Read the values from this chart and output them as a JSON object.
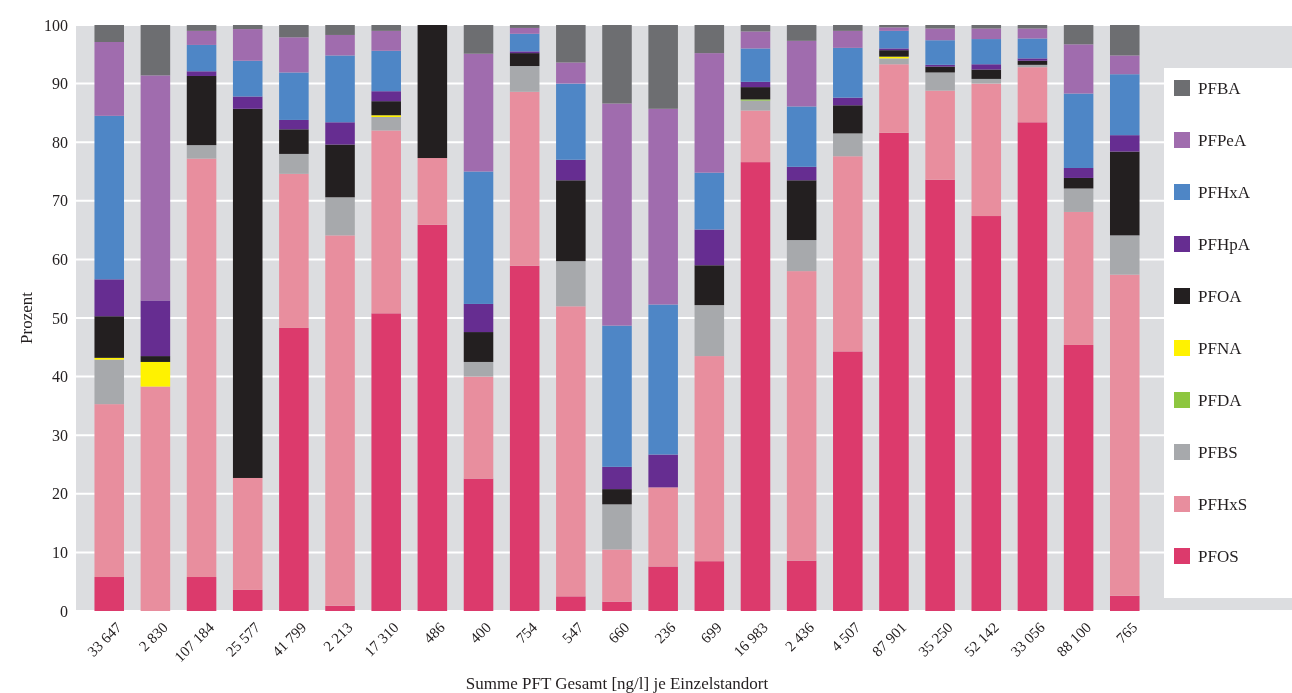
{
  "chart_data": {
    "type": "bar",
    "stacked": true,
    "xlabel": "Summe PFT Gesamt [ng/l] je Einzelstandort",
    "ylabel": "Prozent",
    "categories": [
      "33 647",
      "2 830",
      "107 184",
      "25 577",
      "41 799",
      "2 213",
      "17 310",
      "486",
      "400",
      "754",
      "547",
      "660",
      "236",
      "699",
      "16 983",
      "2 436",
      "4 507",
      "87 901",
      "35 250",
      "52 142",
      "33 056",
      "88 100",
      "765"
    ],
    "ylim": [
      0,
      100
    ],
    "yticks": [
      0,
      10,
      20,
      30,
      40,
      50,
      60,
      70,
      80,
      90,
      100
    ],
    "grid": "y",
    "legend": "right",
    "series": [
      {
        "name": "PFOS",
        "color": "#dc3a6c",
        "values": [
          5.8,
          0,
          5.8,
          3.6,
          48.3,
          0.9,
          50.8,
          65.9,
          22.6,
          58.9,
          2.5,
          1.6,
          7.6,
          8.5,
          76.6,
          8.6,
          44.3,
          81.6,
          73.6,
          67.4,
          83.4,
          45.4,
          2.6
        ]
      },
      {
        "name": "PFHxS",
        "color": "#e88e9e",
        "values": [
          29.5,
          38.3,
          71.4,
          19.1,
          26.3,
          63.2,
          31.2,
          11.4,
          17.4,
          29.7,
          49.5,
          8.9,
          13.5,
          35,
          8.8,
          49.4,
          33.3,
          11.7,
          15.2,
          22.6,
          9.4,
          22.7,
          54.8
        ]
      },
      {
        "name": "PFBS",
        "color": "#a7a9ac",
        "values": [
          7.6,
          0,
          2.3,
          0,
          3.4,
          6.5,
          2.3,
          0,
          2.5,
          4.4,
          7.7,
          7.7,
          0,
          8.7,
          1.7,
          5.3,
          3.9,
          1,
          3.1,
          0.8,
          0.4,
          4,
          6.7
        ]
      },
      {
        "name": "PFDA",
        "color": "#8dc63f",
        "values": [
          0,
          0,
          0,
          0,
          0,
          0,
          0,
          0,
          0,
          0,
          0,
          0,
          0,
          0,
          0.2,
          0,
          0,
          0,
          0,
          0,
          0,
          0,
          0
        ]
      },
      {
        "name": "PFNA",
        "color": "#fff200",
        "values": [
          0.3,
          4.2,
          0,
          0,
          0,
          0,
          0.3,
          0,
          0,
          0,
          0,
          0,
          0,
          0,
          0,
          0,
          0,
          0.3,
          0,
          0,
          0,
          0,
          0
        ]
      },
      {
        "name": "PFOA",
        "color": "#231f20",
        "values": [
          7.1,
          1,
          11.8,
          63,
          4.2,
          9,
          2.4,
          22.7,
          5.1,
          2.2,
          13.8,
          2.6,
          0,
          6.8,
          2.1,
          10.2,
          4.8,
          1.1,
          1,
          1.6,
          0.7,
          1.8,
          14.3
        ]
      },
      {
        "name": "PFHpA",
        "color": "#662d91",
        "values": [
          6.3,
          9.5,
          0.8,
          2.1,
          1.6,
          3.8,
          1.7,
          0,
          4.8,
          0.3,
          3.5,
          3.8,
          5.6,
          6.1,
          0.9,
          2.3,
          1.3,
          0.3,
          0.3,
          0.9,
          0.4,
          1.7,
          2.8
        ]
      },
      {
        "name": "PFHxA",
        "color": "#4e86c6",
        "values": [
          27.9,
          0,
          4.5,
          6.1,
          8.1,
          11.4,
          6.9,
          0,
          22.6,
          3,
          13,
          24.1,
          25.6,
          9.7,
          5.7,
          10.3,
          8.5,
          3,
          4.2,
          4.3,
          3.4,
          12.7,
          10.4
        ]
      },
      {
        "name": "PFPeA",
        "color": "#a06cae",
        "values": [
          12.6,
          38.4,
          2.4,
          5.4,
          6,
          3.5,
          3.4,
          0,
          20.1,
          1,
          3.6,
          37.9,
          33.4,
          20.4,
          2.9,
          11.2,
          2.9,
          0.6,
          2,
          1.8,
          1.7,
          8.4,
          3.2
        ]
      },
      {
        "name": "PFBA",
        "color": "#6d6e71",
        "values": [
          2.9,
          8.6,
          1,
          0.7,
          2.1,
          1.7,
          1,
          0,
          4.9,
          0.5,
          6.4,
          13.4,
          14.3,
          4.8,
          1.1,
          2.7,
          1,
          0.4,
          0.6,
          0.6,
          0.6,
          3.3,
          5.2
        ]
      }
    ]
  }
}
